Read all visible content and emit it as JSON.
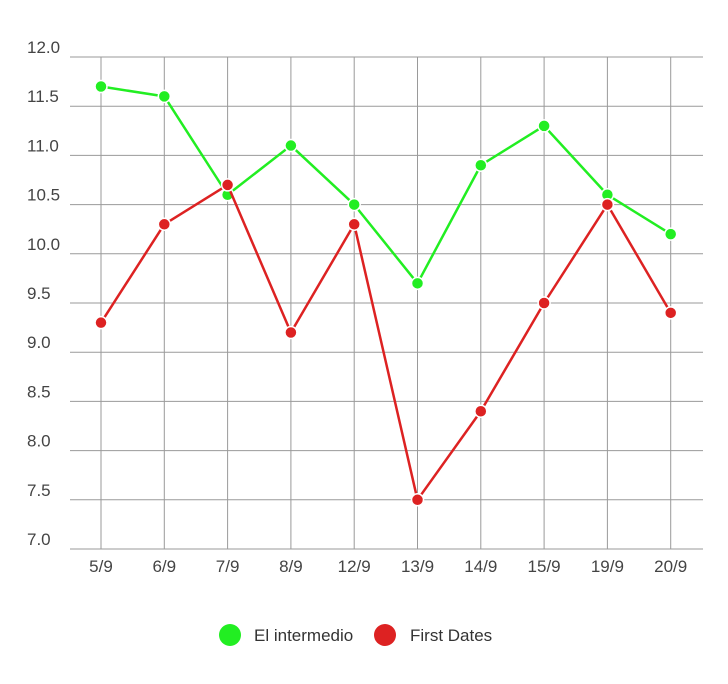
{
  "chart_data": {
    "type": "line",
    "categories": [
      "5/9",
      "6/9",
      "7/9",
      "8/9",
      "12/9",
      "13/9",
      "14/9",
      "15/9",
      "19/9",
      "20/9"
    ],
    "series": [
      {
        "name": "El intermedio",
        "color": "#22ee22",
        "values": [
          11.7,
          11.6,
          10.6,
          11.1,
          10.5,
          9.7,
          10.9,
          11.3,
          10.6,
          10.2
        ]
      },
      {
        "name": "First Dates",
        "color": "#dd2222",
        "values": [
          9.3,
          10.3,
          10.7,
          9.2,
          10.3,
          7.5,
          8.4,
          9.5,
          10.5,
          9.4
        ]
      }
    ],
    "y_ticks": [
      "7.0",
      "7.5",
      "8.0",
      "8.5",
      "9.0",
      "9.5",
      "10.0",
      "10.5",
      "11.0",
      "11.5",
      "12.0"
    ],
    "ylim": [
      7.0,
      12.0
    ],
    "grid": true,
    "legend_position": "bottom-center"
  }
}
